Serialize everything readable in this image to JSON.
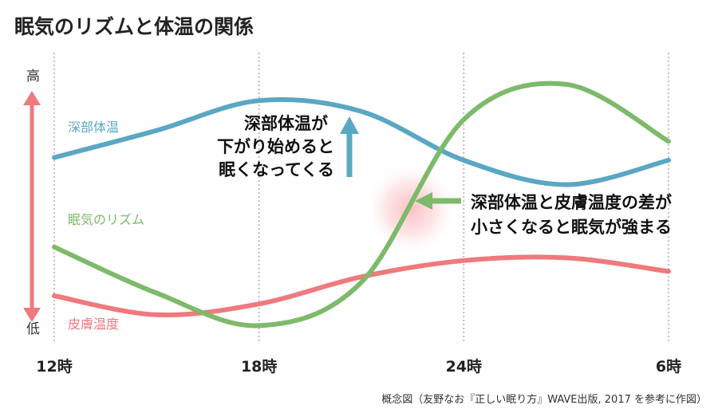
{
  "chart_data": {
    "type": "line",
    "title": "眠気のリズムと体温の関係",
    "categories": [
      "12時",
      "18時",
      "24時",
      "6時"
    ],
    "x": [
      12,
      15,
      18,
      21,
      24,
      27,
      30
    ],
    "ylim": [
      0,
      10
    ],
    "yaxis": {
      "top_label": "高",
      "bottom_label": "低"
    },
    "grid": true,
    "series": [
      {
        "name": "深部体温",
        "color": "#5aa7c4",
        "values": [
          6.6,
          7.6,
          8.7,
          8.3,
          6.5,
          5.6,
          6.5
        ]
      },
      {
        "name": "眠気のリズム",
        "color": "#7dba6a",
        "values": [
          3.3,
          1.6,
          0.4,
          2.0,
          8.0,
          9.3,
          7.2
        ]
      },
      {
        "name": "皮膚温度",
        "color": "#ee7a7e",
        "values": [
          1.5,
          0.8,
          1.2,
          2.2,
          2.8,
          2.9,
          2.4
        ]
      }
    ],
    "annotations": {
      "callout1": [
        "深部体温が",
        "下がり始めると",
        "眠くなってくる"
      ],
      "callout2": [
        "深部体温と皮膚温度の差が",
        "小さくなると眠気が強まる"
      ]
    },
    "source": "概念図（友野なお『正しい眠り方』WAVE出版, 2017 を参考に作図）"
  }
}
